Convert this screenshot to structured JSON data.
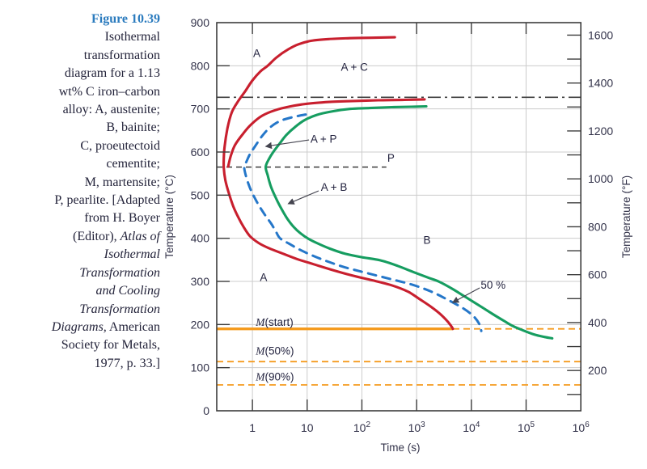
{
  "caption": {
    "figure_color": "#2b7bbe",
    "text_color": "#23233a",
    "lines": [
      {
        "segs": [
          {
            "t": "Figure 10.39",
            "bold": true,
            "blue": true
          }
        ]
      },
      {
        "segs": [
          {
            "t": "Isothermal"
          }
        ]
      },
      {
        "segs": [
          {
            "t": "transformation"
          }
        ]
      },
      {
        "segs": [
          {
            "t": "diagram for a 1.13"
          }
        ]
      },
      {
        "segs": [
          {
            "t": "wt% C iron–carbon"
          }
        ]
      },
      {
        "segs": [
          {
            "t": "alloy: A, austenite;"
          }
        ]
      },
      {
        "segs": [
          {
            "t": "B, bainite;"
          }
        ]
      },
      {
        "segs": [
          {
            "t": "C, proeutectoid"
          }
        ]
      },
      {
        "segs": [
          {
            "t": "cementite;"
          }
        ]
      },
      {
        "segs": [
          {
            "t": "M, martensite;"
          }
        ]
      },
      {
        "segs": [
          {
            "t": "P, pearlite. [Adapted"
          }
        ]
      },
      {
        "segs": [
          {
            "t": "from H. Boyer"
          }
        ]
      },
      {
        "segs": [
          {
            "t": "(Editor), "
          },
          {
            "t": "Atlas of",
            "italic": true
          }
        ]
      },
      {
        "segs": [
          {
            "t": "Isothermal",
            "italic": true
          }
        ]
      },
      {
        "segs": [
          {
            "t": "Transformation",
            "italic": true
          }
        ]
      },
      {
        "segs": [
          {
            "t": "and Cooling",
            "italic": true
          }
        ]
      },
      {
        "segs": [
          {
            "t": "Transformation",
            "italic": true
          }
        ]
      },
      {
        "segs": [
          {
            "t": "Diagrams,",
            "italic": true
          },
          {
            "t": " American"
          }
        ]
      },
      {
        "segs": [
          {
            "t": "Society for Metals,"
          }
        ]
      },
      {
        "segs": [
          {
            "t": "1977, p. 33.]"
          }
        ]
      }
    ]
  },
  "chart_data": {
    "type": "line",
    "title": "Isothermal transformation diagram, 1.13 wt% C iron-carbon alloy",
    "xlabel": "Time (s)",
    "ylabel_left": "Temperature (°C)",
    "ylabel_right": "Temperature (°F)",
    "x_scale": "log",
    "xlim": [
      0.223,
      1000000
    ],
    "ylim_c": [
      0,
      900
    ],
    "grid": true,
    "yticks_c": [
      0,
      100,
      200,
      300,
      400,
      500,
      600,
      700,
      800,
      900
    ],
    "yticks_f_labels": [
      200,
      400,
      600,
      800,
      1000,
      1200,
      1400,
      1600
    ],
    "yticks_f_all": [
      100,
      200,
      300,
      400,
      500,
      600,
      700,
      800,
      900,
      1000,
      1100,
      1200,
      1300,
      1400,
      1500,
      1600
    ],
    "xticks": [
      {
        "t": 1,
        "label": "1"
      },
      {
        "t": 10,
        "label": "10"
      },
      {
        "t": 100,
        "label": "10",
        "exp": "2"
      },
      {
        "t": 1000,
        "label": "10",
        "exp": "3"
      },
      {
        "t": 10000,
        "label": "10",
        "exp": "4"
      },
      {
        "t": 100000,
        "label": "10",
        "exp": "5"
      },
      {
        "t": 1000000,
        "label": "10",
        "exp": "6"
      }
    ],
    "colors": {
      "red": "#c81f2e",
      "green": "#169d60",
      "blue": "#2577c9",
      "orange": "#f59b1e",
      "line_dark": "#3c3c3c",
      "grid": "#cccccc",
      "label_text": "#23233f",
      "arrow": "#44444f"
    },
    "series": [
      {
        "name": "transformation start (proeutectoid cementite + pearlite/bainite start)",
        "color_key": "red",
        "dash": null,
        "width": 3.1,
        "points": [
          [
            400,
            866
          ],
          [
            150,
            865
          ],
          [
            60,
            864
          ],
          [
            25,
            862
          ],
          [
            12,
            858
          ],
          [
            7,
            850
          ],
          [
            4.5,
            838
          ],
          [
            2.8,
            820
          ],
          [
            1.9,
            800
          ],
          [
            1.4,
            787
          ],
          [
            1.0,
            766
          ],
          [
            0.73,
            740
          ],
          [
            0.55,
            718
          ],
          [
            0.42,
            692
          ],
          [
            0.35,
            655
          ],
          [
            0.31,
            612
          ],
          [
            0.3,
            585
          ],
          [
            0.3,
            563
          ],
          [
            0.32,
            535
          ],
          [
            0.37,
            505
          ],
          [
            0.45,
            473
          ],
          [
            0.56,
            447
          ],
          [
            0.7,
            425
          ],
          [
            0.9,
            405
          ],
          [
            1.3,
            389
          ],
          [
            2.0,
            377
          ],
          [
            3.5,
            365
          ],
          [
            6.5,
            352
          ],
          [
            13,
            340
          ],
          [
            28,
            327
          ],
          [
            65,
            314
          ],
          [
            150,
            303
          ],
          [
            350,
            291
          ],
          [
            700,
            276
          ],
          [
            1100,
            260
          ],
          [
            1700,
            244
          ],
          [
            2500,
            228
          ],
          [
            3400,
            212
          ],
          [
            4200,
            198
          ],
          [
            4600,
            190
          ]
        ]
      },
      {
        "name": "pearlite start upper branch (to ~722 °C)",
        "color_key": "red",
        "dash": null,
        "width": 3.1,
        "points": [
          [
            0.36,
            566
          ],
          [
            0.4,
            590
          ],
          [
            0.48,
            616
          ],
          [
            0.68,
            643
          ],
          [
            0.95,
            664
          ],
          [
            1.5,
            684
          ],
          [
            2.6,
            697
          ],
          [
            5,
            706
          ],
          [
            10,
            712
          ],
          [
            25,
            716
          ],
          [
            60,
            718
          ],
          [
            200,
            720
          ],
          [
            600,
            721
          ],
          [
            1400,
            722
          ]
        ]
      },
      {
        "name": "50% transformation",
        "color_key": "blue",
        "dash": "10 8",
        "width": 3,
        "points": [
          [
            9.4,
            687
          ],
          [
            5.5,
            681
          ],
          [
            3.2,
            672
          ],
          [
            2.1,
            657
          ],
          [
            1.5,
            637
          ],
          [
            1.1,
            612
          ],
          [
            0.9,
            595
          ],
          [
            0.78,
            578
          ],
          [
            0.71,
            565
          ],
          [
            0.76,
            545
          ],
          [
            0.88,
            520
          ],
          [
            1.05,
            499
          ],
          [
            1.3,
            477
          ],
          [
            1.7,
            454
          ],
          [
            2.2,
            434
          ],
          [
            2.7,
            415
          ],
          [
            3.2,
            400
          ],
          [
            4.6,
            388
          ],
          [
            7.5,
            373
          ],
          [
            13,
            359
          ],
          [
            24,
            346
          ],
          [
            48,
            333
          ],
          [
            110,
            321
          ],
          [
            300,
            307
          ],
          [
            800,
            293
          ],
          [
            1800,
            277
          ],
          [
            3500,
            259
          ],
          [
            7000,
            238
          ],
          [
            11000,
            219
          ],
          [
            14000,
            201
          ],
          [
            15200,
            185
          ]
        ]
      },
      {
        "name": "transformation finish (100%)",
        "color_key": "green",
        "dash": null,
        "width": 3.1,
        "points": [
          [
            1500,
            706
          ],
          [
            800,
            705
          ],
          [
            350,
            704
          ],
          [
            140,
            702
          ],
          [
            60,
            700
          ],
          [
            28,
            694
          ],
          [
            15,
            686
          ],
          [
            9,
            674
          ],
          [
            6,
            658
          ],
          [
            4.2,
            640
          ],
          [
            3.2,
            621
          ],
          [
            2.5,
            603
          ],
          [
            2.05,
            586
          ],
          [
            1.75,
            566
          ],
          [
            1.9,
            546
          ],
          [
            2.15,
            522
          ],
          [
            2.6,
            497
          ],
          [
            3.3,
            471
          ],
          [
            4.3,
            446
          ],
          [
            5.7,
            426
          ],
          [
            7.5,
            412
          ],
          [
            10.5,
            399
          ],
          [
            15,
            389
          ],
          [
            26,
            376
          ],
          [
            50,
            364
          ],
          [
            100,
            356
          ],
          [
            215,
            349
          ],
          [
            450,
            336
          ],
          [
            900,
            321
          ],
          [
            1600,
            309
          ],
          [
            2600,
            299
          ],
          [
            4600,
            282
          ],
          [
            8000,
            263
          ],
          [
            14000,
            244
          ],
          [
            24000,
            225
          ],
          [
            40000,
            208
          ],
          [
            56000,
            197
          ],
          [
            82000,
            188
          ],
          [
            140000,
            177
          ],
          [
            220000,
            171
          ],
          [
            300000,
            168
          ]
        ]
      }
    ],
    "isotherms": [
      {
        "name": "eutectoid temperature",
        "T": 727,
        "style": "dashdot",
        "color_key": "line_dark",
        "t_start": 0.223,
        "t_end": 1000000,
        "width": 1.6
      },
      {
        "name": "pearlite isotherm",
        "T": 565,
        "style": "dashed",
        "color_key": "line_dark",
        "t_start": 0.223,
        "t_end": 280,
        "width": 1.5,
        "label": "P",
        "label_t": 340,
        "label_T": 586
      }
    ],
    "m_lines": [
      {
        "name": "M(start)",
        "T": 190,
        "style": "solid",
        "solid_until": 4600,
        "dashed_after": true,
        "width": 3.4,
        "label": {
          "m": "M",
          "rest": "(start)",
          "t": 1.15,
          "T": 205
        }
      },
      {
        "name": "M(50%)",
        "T": 114,
        "style": "dashed",
        "width": 1.8,
        "label": {
          "m": "M",
          "rest": "(50%)",
          "t": 1.15,
          "T": 139
        }
      },
      {
        "name": "M(90%)",
        "T": 60,
        "style": "dashed",
        "width": 1.8,
        "label": {
          "m": "M",
          "rest": "(90%)",
          "t": 1.15,
          "T": 79
        }
      }
    ],
    "region_labels": [
      {
        "text": "A",
        "t": 1.2,
        "T": 829
      },
      {
        "text": "A + C",
        "t": 73,
        "T": 797
      },
      {
        "text": "A + P",
        "t": 20,
        "T": 630,
        "arrow": {
          "from": [
            10.8,
            628
          ],
          "to": [
            1.75,
            613
          ]
        }
      },
      {
        "text": "A + B",
        "t": 31,
        "T": 518,
        "arrow": {
          "from": [
            16.2,
            510
          ],
          "to": [
            4.5,
            480
          ]
        }
      },
      {
        "text": "B",
        "t": 1550,
        "T": 396
      },
      {
        "text": "A",
        "t": 1.6,
        "T": 309
      },
      {
        "text": "50 %",
        "t": 25000,
        "T": 292,
        "arrow": {
          "from": [
            14200,
            285
          ],
          "to": [
            4550,
            251
          ]
        }
      }
    ]
  }
}
